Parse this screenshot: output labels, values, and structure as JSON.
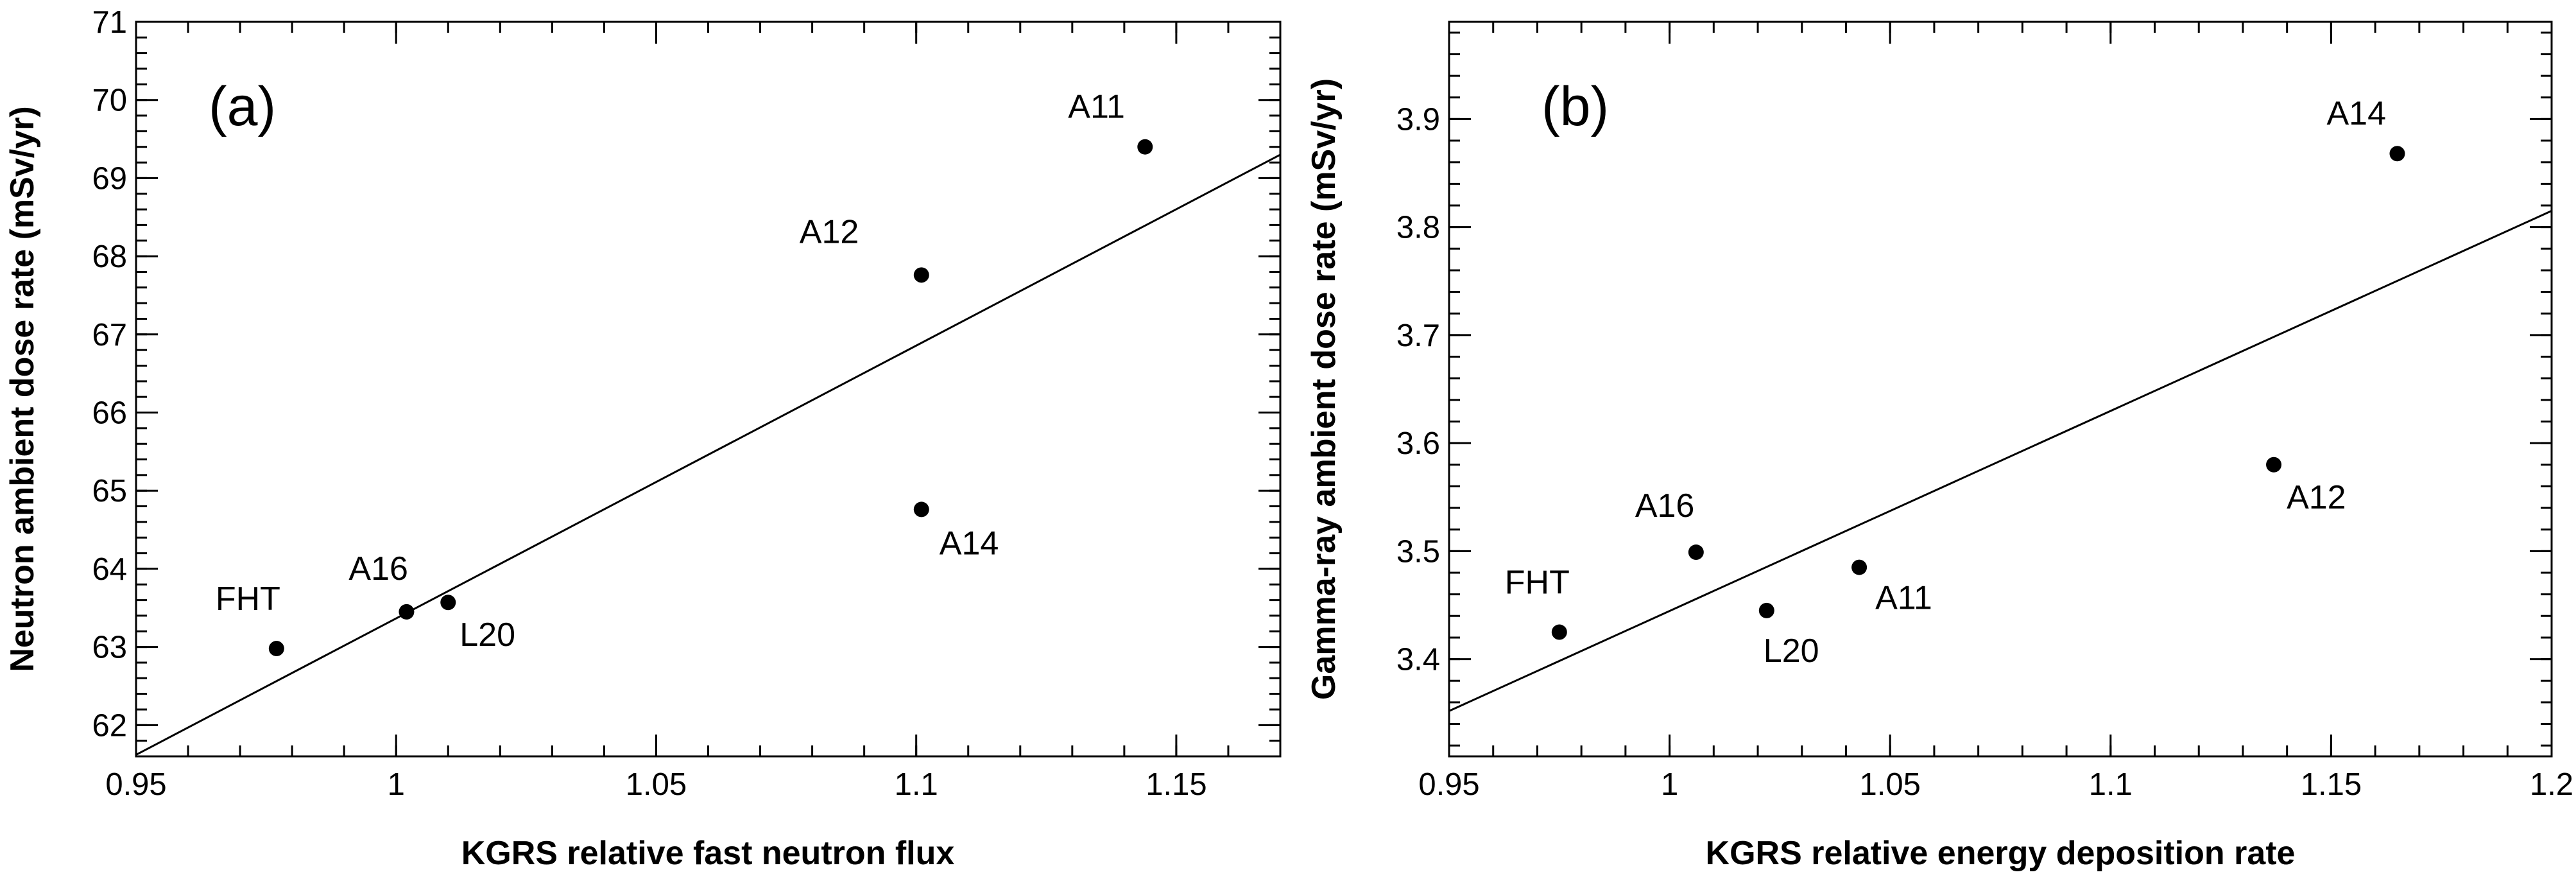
{
  "chart_data": [
    {
      "type": "scatter",
      "panel_label": "(a)",
      "xlabel": "KGRS relative fast neutron flux",
      "ylabel": "Neutron ambient dose rate (mSv/yr)",
      "xlim": [
        0.95,
        1.17
      ],
      "ylim": [
        61.6,
        71
      ],
      "x_ticks": [
        0.95,
        1,
        1.05,
        1.1,
        1.15
      ],
      "x_tick_labels": [
        "0.95",
        "1",
        "1.05",
        "1.1",
        "1.15"
      ],
      "y_ticks": [
        62,
        63,
        64,
        65,
        66,
        67,
        68,
        69,
        70,
        71
      ],
      "y_tick_labels": [
        "62",
        "63",
        "64",
        "65",
        "66",
        "67",
        "68",
        "69",
        "70",
        "71"
      ],
      "points": [
        {
          "label": "FHT",
          "x": 0.977,
          "y": 62.98
        },
        {
          "label": "A16",
          "x": 1.002,
          "y": 63.45
        },
        {
          "label": "L20",
          "x": 1.01,
          "y": 63.57
        },
        {
          "label": "A14",
          "x": 1.101,
          "y": 64.76
        },
        {
          "label": "A12",
          "x": 1.101,
          "y": 67.76
        },
        {
          "label": "A11",
          "x": 1.144,
          "y": 69.4
        }
      ],
      "fit_line": {
        "x1": 0.95,
        "y1": 61.62,
        "x2": 1.17,
        "y2": 69.3
      }
    },
    {
      "type": "scatter",
      "panel_label": "(b)",
      "xlabel": "KGRS relative energy deposition rate",
      "ylabel": "Gamma-ray ambient dose rate (mSv/yr)",
      "xlim": [
        0.95,
        1.2
      ],
      "ylim": [
        3.31,
        3.99
      ],
      "x_ticks": [
        0.95,
        1,
        1.05,
        1.1,
        1.15,
        1.2
      ],
      "x_tick_labels": [
        "0.95",
        "1",
        "1.05",
        "1.1",
        "1.15",
        "1.2"
      ],
      "y_ticks": [
        3.4,
        3.5,
        3.6,
        3.7,
        3.8,
        3.9
      ],
      "y_tick_labels": [
        "3.4",
        "3.5",
        "3.6",
        "3.7",
        "3.8",
        "3.9"
      ],
      "points": [
        {
          "label": "FHT",
          "x": 0.975,
          "y": 3.425
        },
        {
          "label": "A16",
          "x": 1.006,
          "y": 3.499
        },
        {
          "label": "L20",
          "x": 1.022,
          "y": 3.445
        },
        {
          "label": "A11",
          "x": 1.043,
          "y": 3.485
        },
        {
          "label": "A12",
          "x": 1.137,
          "y": 3.58
        },
        {
          "label": "A14",
          "x": 1.165,
          "y": 3.868
        }
      ],
      "fit_line": {
        "x1": 0.95,
        "y1": 3.352,
        "x2": 1.2,
        "y2": 3.815
      }
    }
  ]
}
